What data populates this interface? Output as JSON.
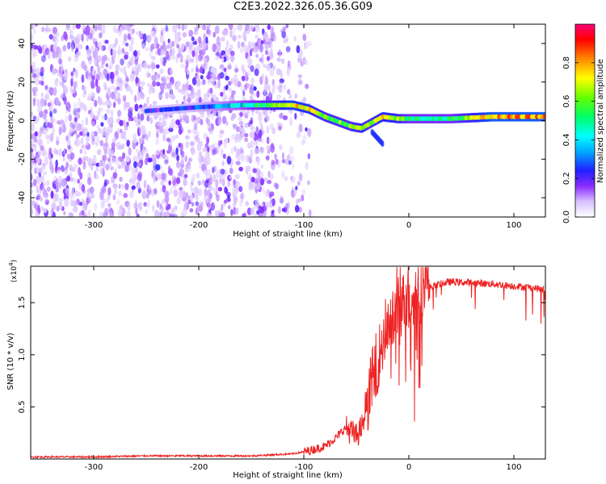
{
  "title": "C2E3.2022.326.05.36.G09",
  "chart_data": [
    {
      "type": "heatmap",
      "xlabel": "Height of straight line (km)",
      "ylabel": "Frequency (Hz)",
      "xlim": [
        -360,
        130
      ],
      "ylim": [
        -50,
        50
      ],
      "xticks": [
        -300,
        -200,
        -100,
        0,
        100
      ],
      "yticks": [
        -40,
        -20,
        0,
        20,
        40
      ],
      "colorbar": {
        "label": "Normalized spectral amplitude",
        "range": [
          0,
          1
        ],
        "ticks": [
          "0.0",
          "0.2",
          "0.4",
          "0.6",
          "0.8"
        ]
      },
      "ridge": {
        "x": [
          -250,
          -200,
          -160,
          -130,
          -110,
          -95,
          -80,
          -65,
          -55,
          -45,
          -35,
          -25,
          -10,
          0,
          40,
          80,
          130
        ],
        "freq_hz": [
          5,
          7,
          8,
          8,
          8,
          6,
          2,
          -1,
          -3,
          -4,
          -1,
          2,
          1,
          1,
          1,
          2,
          2
        ],
        "amplitude": [
          0.2,
          0.25,
          0.4,
          0.6,
          0.75,
          0.7,
          0.6,
          0.6,
          0.6,
          0.65,
          0.6,
          0.7,
          0.65,
          0.5,
          0.5,
          0.8,
          0.8
        ]
      },
      "noise_region_x": [
        -360,
        -105
      ]
    },
    {
      "type": "line",
      "xlabel": "Height of straight line (km)",
      "ylabel": "SNR (10 * v/v)",
      "y_scale_label": "(x10",
      "y_scale_exp": "4",
      "xlim": [
        -360,
        130
      ],
      "ylim": [
        0,
        1.85
      ],
      "xticks": [
        -300,
        -200,
        -100,
        0,
        100
      ],
      "yticks": [
        "0.5",
        "1.0",
        "1.5"
      ],
      "color": "#ee2222",
      "x": [
        -360,
        -300,
        -250,
        -200,
        -150,
        -110,
        -95,
        -80,
        -70,
        -60,
        -50,
        -45,
        -40,
        -35,
        -30,
        -25,
        -20,
        -15,
        -10,
        -5,
        0,
        10,
        20,
        30,
        40,
        60,
        80,
        100,
        120,
        130
      ],
      "y": [
        0.02,
        0.02,
        0.03,
        0.03,
        0.03,
        0.05,
        0.08,
        0.12,
        0.2,
        0.3,
        0.22,
        0.3,
        0.55,
        0.75,
        0.95,
        1.1,
        1.25,
        1.35,
        1.45,
        1.5,
        1.55,
        1.6,
        1.65,
        1.68,
        1.7,
        1.69,
        1.68,
        1.66,
        1.64,
        1.62
      ]
    }
  ]
}
